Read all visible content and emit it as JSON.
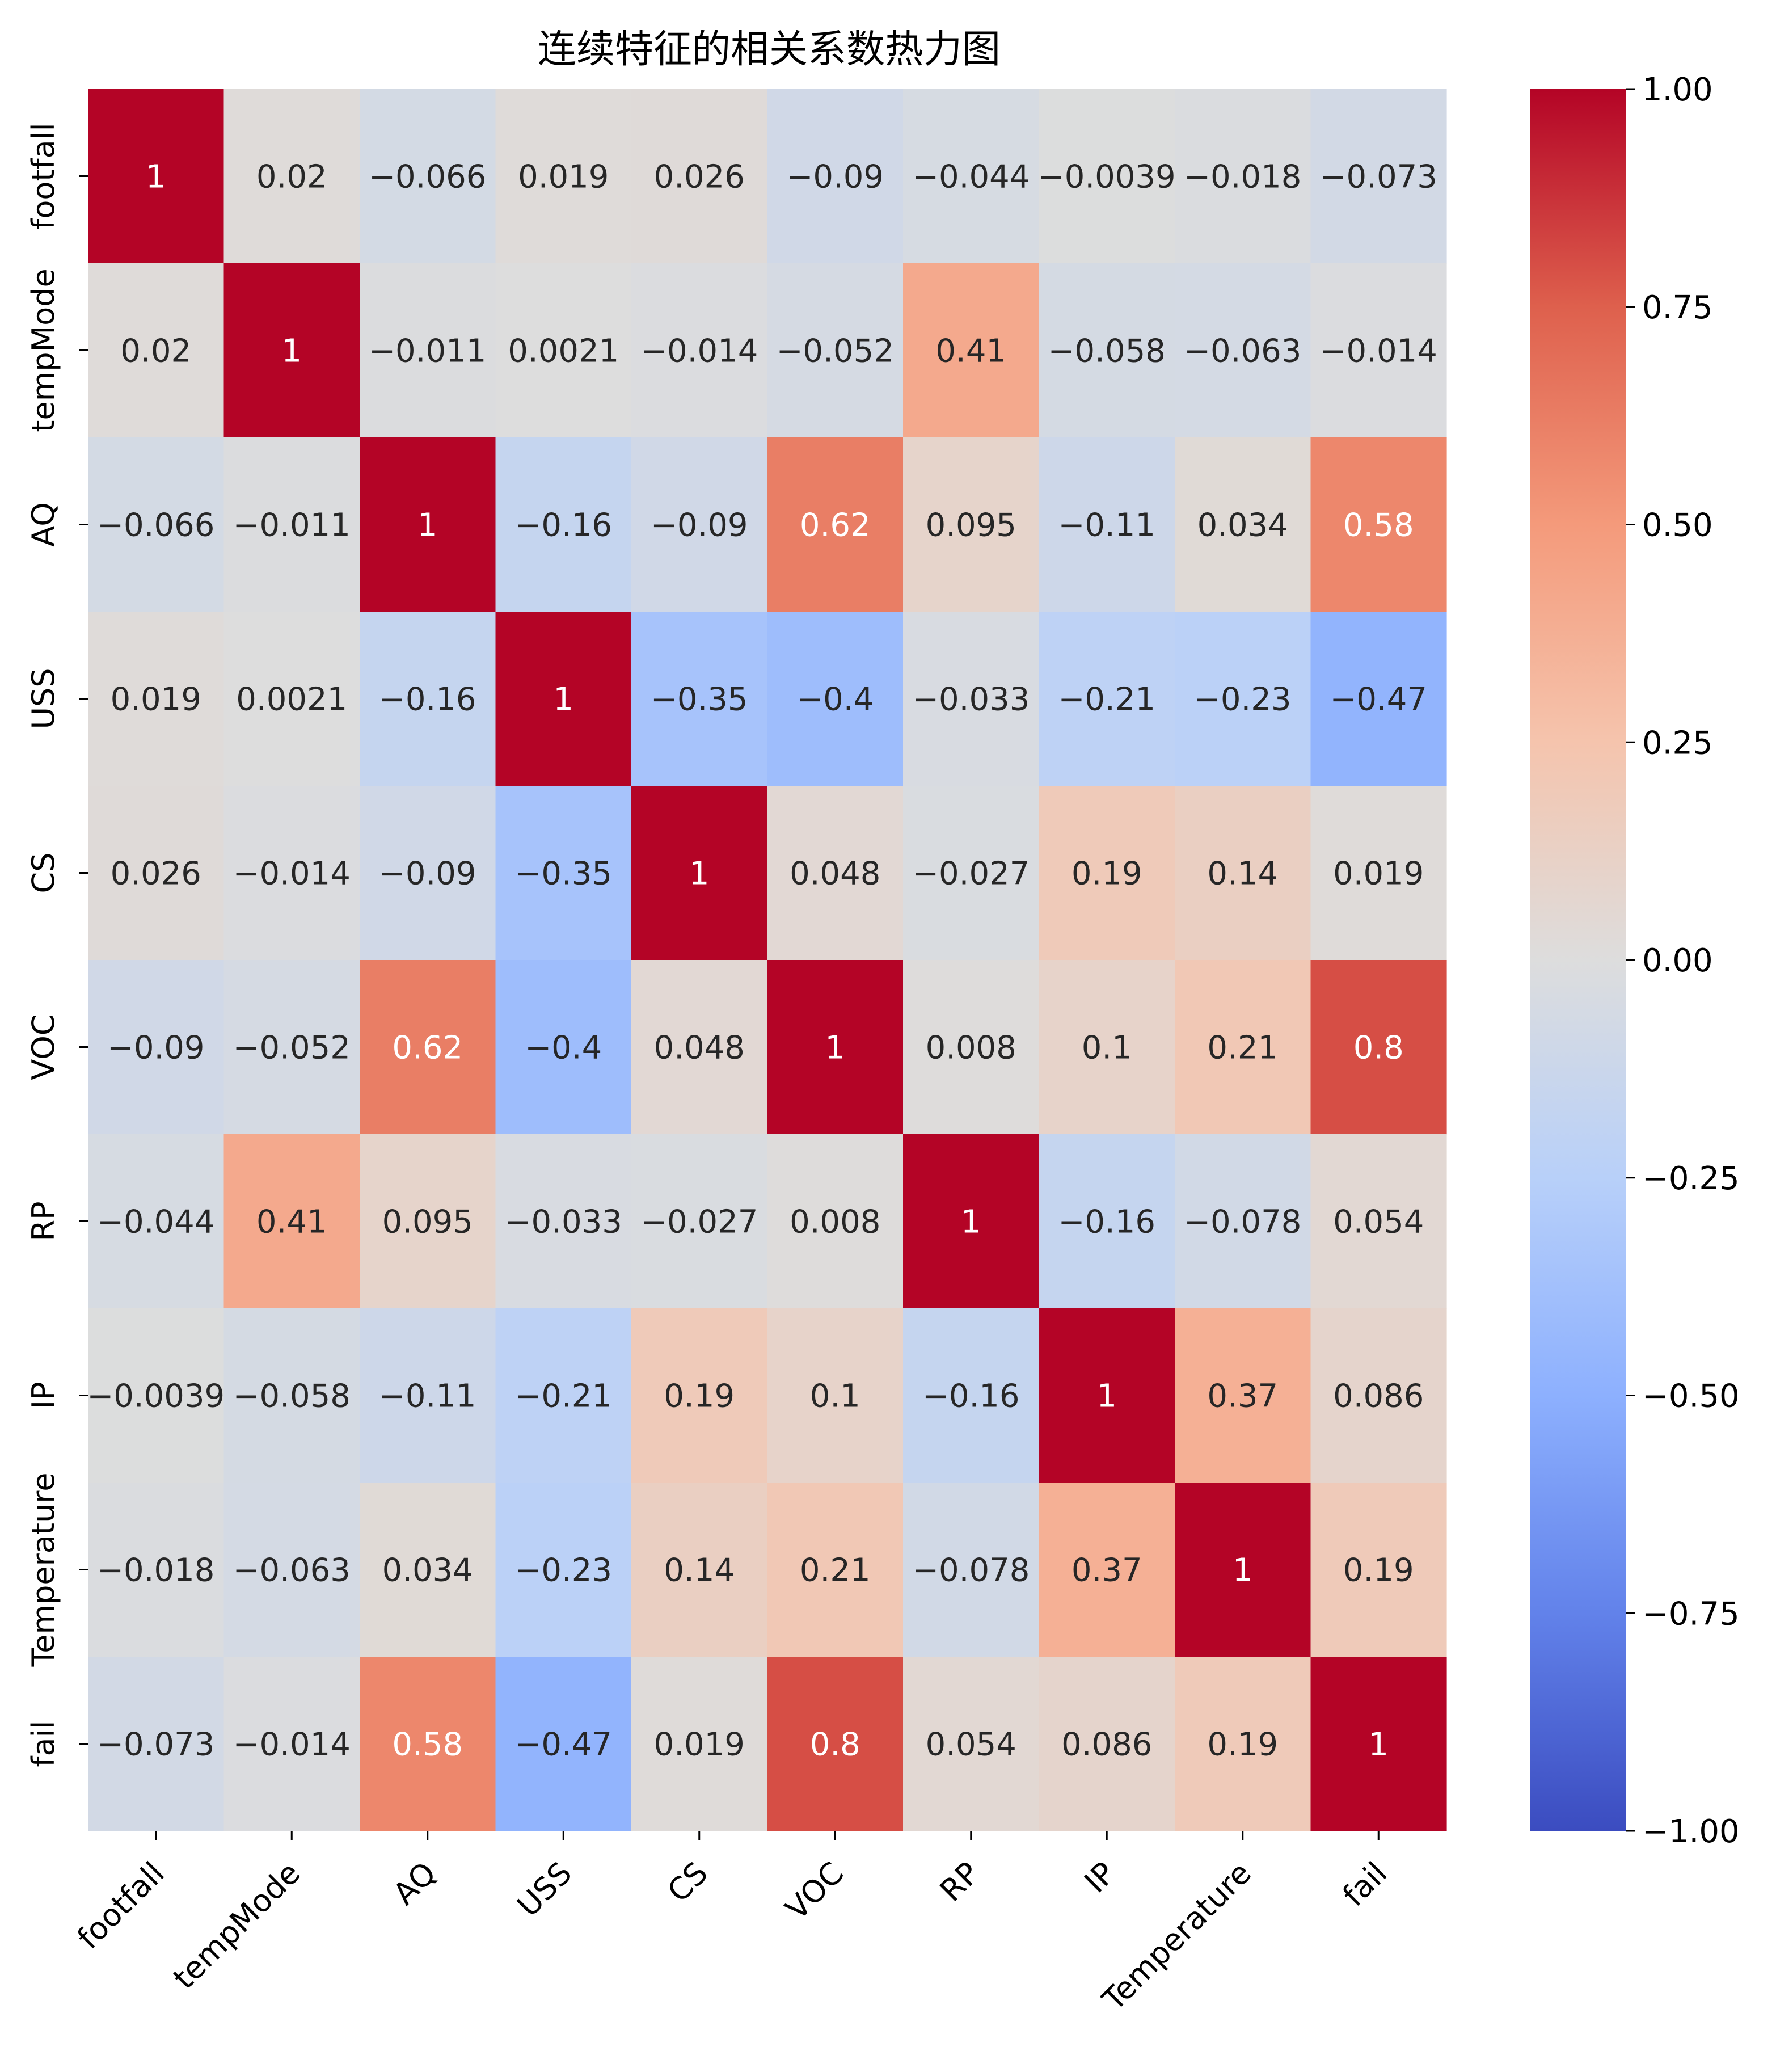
{
  "chart_data": {
    "type": "heatmap",
    "title": "连续特征的相关系数热力图",
    "xlabel": "",
    "ylabel": "",
    "x_categories": [
      "footfall",
      "tempMode",
      "AQ",
      "USS",
      "CS",
      "VOC",
      "RP",
      "IP",
      "Temperature",
      "fail"
    ],
    "y_categories": [
      "footfall",
      "tempMode",
      "AQ",
      "USS",
      "CS",
      "VOC",
      "RP",
      "IP",
      "Temperature",
      "fail"
    ],
    "values": [
      [
        1,
        0.02,
        -0.066,
        0.019,
        0.026,
        -0.09,
        -0.044,
        -0.0039,
        -0.018,
        -0.073
      ],
      [
        0.02,
        1,
        -0.011,
        0.0021,
        -0.014,
        -0.052,
        0.41,
        -0.058,
        -0.063,
        -0.014
      ],
      [
        -0.066,
        -0.011,
        1,
        -0.16,
        -0.09,
        0.62,
        0.095,
        -0.11,
        0.034,
        0.58
      ],
      [
        0.019,
        0.0021,
        -0.16,
        1,
        -0.35,
        -0.4,
        -0.033,
        -0.21,
        -0.23,
        -0.47
      ],
      [
        0.026,
        -0.014,
        -0.09,
        -0.35,
        1,
        0.048,
        -0.027,
        0.19,
        0.14,
        0.019
      ],
      [
        -0.09,
        -0.052,
        0.62,
        -0.4,
        0.048,
        1,
        0.008,
        0.1,
        0.21,
        0.8
      ],
      [
        -0.044,
        0.41,
        0.095,
        -0.033,
        -0.027,
        0.008,
        1,
        -0.16,
        -0.078,
        0.054
      ],
      [
        -0.0039,
        -0.058,
        -0.11,
        -0.21,
        0.19,
        0.1,
        -0.16,
        1,
        0.37,
        0.086
      ],
      [
        -0.018,
        -0.063,
        0.034,
        -0.23,
        0.14,
        0.21,
        -0.078,
        0.37,
        1,
        0.19
      ],
      [
        -0.073,
        -0.014,
        0.58,
        -0.47,
        0.019,
        0.8,
        0.054,
        0.086,
        0.19,
        1
      ]
    ],
    "colormap": "coolwarm",
    "vmin": -1,
    "vmax": 1,
    "colorbar_ticks": [
      1,
      0.75,
      0.5,
      0.25,
      0,
      -0.25,
      -0.5,
      -0.75,
      -1
    ],
    "colorbar_tick_labels": [
      "1.00",
      "0.75",
      "0.50",
      "0.25",
      "0.00",
      "−0.25",
      "−0.50",
      "−0.75",
      "−1.00"
    ],
    "annotations": true,
    "grid": false,
    "legend": "colorbar right"
  }
}
